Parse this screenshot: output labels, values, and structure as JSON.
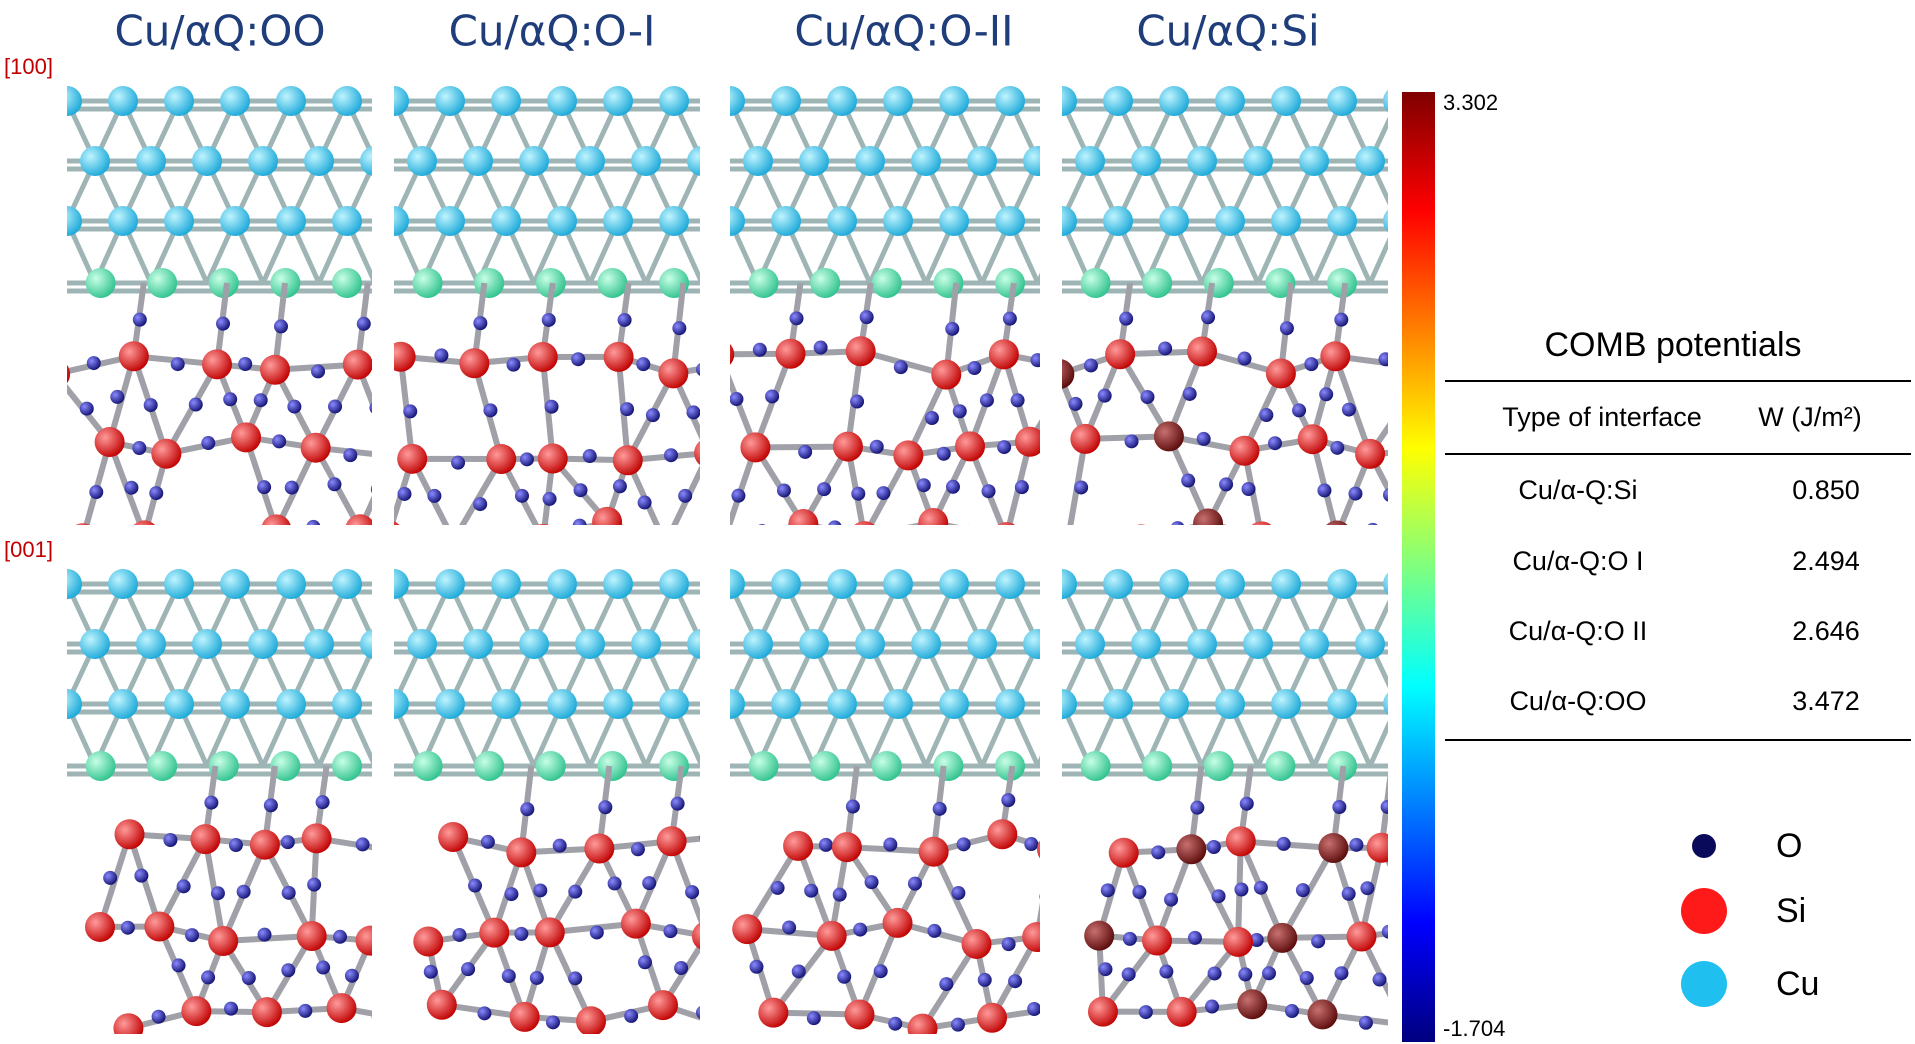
{
  "columns": [
    "Cu/αQ:OO",
    "Cu/αQ:O-I",
    "Cu/αQ:O-II",
    "Cu/αQ:Si"
  ],
  "rows": [
    "[100]",
    "[001]"
  ],
  "colorbar": {
    "max": "3.302",
    "min": "-1.704"
  },
  "table": {
    "title": "COMB potentials",
    "header": [
      "Type of interface",
      "W (J/m²)"
    ],
    "rows": [
      [
        "Cu/α-Q:Si",
        "0.850"
      ],
      [
        "Cu/α-Q:O I",
        "2.494"
      ],
      [
        "Cu/α-Q:O II",
        "2.646"
      ],
      [
        "Cu/α-Q:OO",
        "3.472"
      ]
    ]
  },
  "legend": [
    "O",
    "Si",
    "Cu"
  ]
}
